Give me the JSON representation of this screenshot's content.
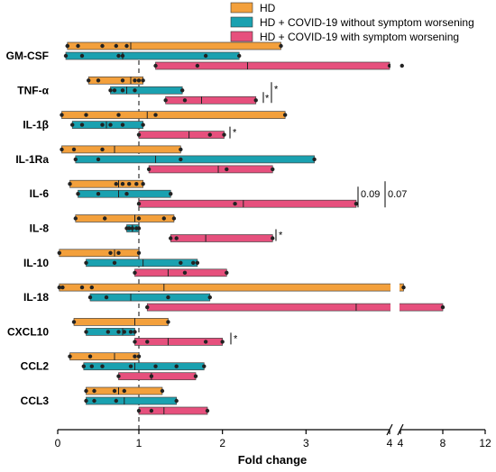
{
  "chart_data": {
    "type": "floating-bar",
    "title": "",
    "xlabel": "Fold change",
    "ylabel": "",
    "reference_line": 1,
    "x_axis": {
      "segments": [
        {
          "domain": [
            0,
            4
          ],
          "ticks": [
            0,
            1,
            2,
            3,
            4
          ]
        },
        {
          "domain": [
            4,
            12
          ],
          "ticks": [
            4,
            8,
            12
          ]
        }
      ],
      "tick_labels": [
        "0",
        "1",
        "2",
        "3",
        "4",
        "4",
        "8",
        "12"
      ]
    },
    "legend": {
      "placement": "top-right",
      "entries": [
        {
          "name": "HD",
          "color": "#f3a03c"
        },
        {
          "name": "HD + COVID-19 without symptom worsening",
          "color": "#1aa1b0"
        },
        {
          "name": "HD + COVID-19 with symptom worsening",
          "color": "#e6507d"
        }
      ]
    },
    "categories": [
      "GM-CSF",
      "TNF-α",
      "IL-1β",
      "IL-1Ra",
      "IL-6",
      "IL-8",
      "IL-10",
      "IL-18",
      "CXCL10",
      "CCL2",
      "CCL3"
    ],
    "series": [
      {
        "name": "HD",
        "color": "#f3a03c",
        "bars": [
          {
            "min": 0.12,
            "median": 0.9,
            "max": 2.7,
            "points": [
              0.12,
              0.25,
              0.55,
              0.72,
              0.85
            ]
          },
          {
            "min": 0.38,
            "median": 0.9,
            "max": 1.05,
            "points": [
              0.5,
              0.8,
              0.95,
              1.0
            ]
          },
          {
            "min": 0.05,
            "median": 1.1,
            "max": 2.75,
            "points": [
              0.35,
              0.75,
              1.2
            ]
          },
          {
            "min": 0.05,
            "median": 0.7,
            "max": 1.5,
            "points": [
              0.2,
              0.55
            ]
          },
          {
            "min": 0.15,
            "median": 0.75,
            "max": 1.05,
            "points": [
              0.72,
              0.8,
              0.88,
              0.97
            ]
          },
          {
            "min": 0.22,
            "median": 0.95,
            "max": 1.42,
            "points": [
              0.58,
              1.0,
              1.3
            ]
          },
          {
            "min": 0.02,
            "median": 0.7,
            "max": 1.0,
            "points": [
              0.65,
              0.75
            ]
          },
          {
            "min": 0.02,
            "median": 1.3,
            "max": 4.3,
            "points": [
              0.06,
              0.3,
              0.42
            ]
          },
          {
            "min": 0.2,
            "median": 0.95,
            "max": 1.35,
            "points": []
          },
          {
            "min": 0.15,
            "median": 0.7,
            "max": 1.0,
            "points": [
              0.4,
              0.95
            ]
          },
          {
            "min": 0.35,
            "median": 0.75,
            "max": 1.28,
            "points": [
              0.45,
              0.7,
              0.82
            ]
          }
        ]
      },
      {
        "name": "HD + COVID-19 without symptom worsening",
        "color": "#1aa1b0",
        "bars": [
          {
            "min": 0.1,
            "median": 0.8,
            "max": 2.2,
            "points": [
              0.3,
              0.75,
              0.8,
              1.8
            ]
          },
          {
            "min": 0.65,
            "median": 0.85,
            "max": 1.52,
            "points": [
              0.7,
              0.8,
              0.95
            ]
          },
          {
            "min": 0.18,
            "median": 0.6,
            "max": 1.05,
            "points": [
              0.3,
              0.55,
              0.65,
              0.8
            ]
          },
          {
            "min": 0.22,
            "median": 1.2,
            "max": 3.1,
            "points": [
              0.5,
              1.5
            ]
          },
          {
            "min": 0.25,
            "median": 0.75,
            "max": 1.38,
            "points": [
              0.5,
              0.85
            ]
          },
          {
            "min": 0.85,
            "median": 0.92,
            "max": 1.0,
            "points": [
              0.88,
              0.92,
              0.97
            ]
          },
          {
            "min": 0.35,
            "median": 1.05,
            "max": 1.7,
            "points": [
              0.7,
              1.5,
              1.65
            ]
          },
          {
            "min": 0.4,
            "median": 0.9,
            "max": 1.85,
            "points": [
              0.6,
              1.35
            ]
          },
          {
            "min": 0.35,
            "median": 0.8,
            "max": 0.95,
            "points": [
              0.62,
              0.75,
              0.82,
              0.9
            ]
          },
          {
            "min": 0.32,
            "median": 0.95,
            "max": 1.78,
            "points": [
              0.42,
              0.55,
              0.9,
              1.2,
              1.45
            ]
          },
          {
            "min": 0.35,
            "median": 0.82,
            "max": 1.45,
            "points": [
              0.45,
              0.72
            ]
          }
        ]
      },
      {
        "name": "HD + COVID-19 with symptom worsening",
        "color": "#e6507d",
        "bars": [
          {
            "min": 1.2,
            "median": 2.3,
            "max": 4.0,
            "points": [
              1.7,
              4.15
            ]
          },
          {
            "min": 1.32,
            "median": 1.75,
            "max": 2.4,
            "points": [
              1.55
            ]
          },
          {
            "min": 1.0,
            "median": 1.6,
            "max": 2.02,
            "points": [
              1.85
            ]
          },
          {
            "min": 1.12,
            "median": 1.95,
            "max": 2.6,
            "points": [
              2.05
            ]
          },
          {
            "min": 1.0,
            "median": 2.25,
            "max": 3.6,
            "points": [
              2.15
            ]
          },
          {
            "min": 1.38,
            "median": 1.8,
            "max": 2.6,
            "points": [
              1.45
            ]
          },
          {
            "min": 0.95,
            "median": 1.35,
            "max": 2.05,
            "points": [
              1.55
            ]
          },
          {
            "min": 1.1,
            "median": 3.6,
            "max": 8.0,
            "points": []
          },
          {
            "min": 0.95,
            "median": 1.35,
            "max": 2.0,
            "points": [
              1.1,
              1.8
            ]
          },
          {
            "min": 0.75,
            "median": 1.15,
            "max": 1.68,
            "points": [
              1.15
            ]
          },
          {
            "min": 1.0,
            "median": 1.3,
            "max": 1.82,
            "points": [
              1.15
            ]
          }
        ]
      }
    ],
    "annotations": [
      {
        "category": "TNF-α",
        "text": "*"
      },
      {
        "category": "TNF-α",
        "text": "*"
      },
      {
        "category": "IL-1β",
        "text": "*"
      },
      {
        "category": "IL-6",
        "text": "0.09"
      },
      {
        "category": "IL-6",
        "text": "0.07"
      },
      {
        "category": "IL-8",
        "text": "*"
      },
      {
        "category": "CXCL10",
        "text": "*"
      }
    ]
  }
}
